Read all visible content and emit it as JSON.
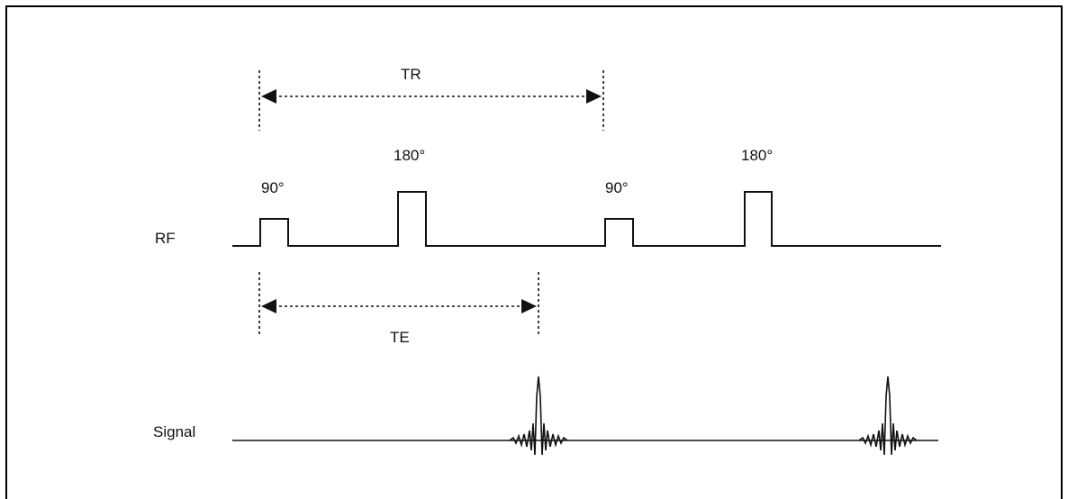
{
  "labels": {
    "tr": "TR",
    "te": "TE",
    "rf": "RF",
    "signal": "Signal",
    "pulse_90_a": "90°",
    "pulse_180_a": "180°",
    "pulse_90_b": "90°",
    "pulse_180_b": "180°"
  },
  "colors": {
    "line": "#111111",
    "background": "#ffffff",
    "border": "#000000"
  }
}
